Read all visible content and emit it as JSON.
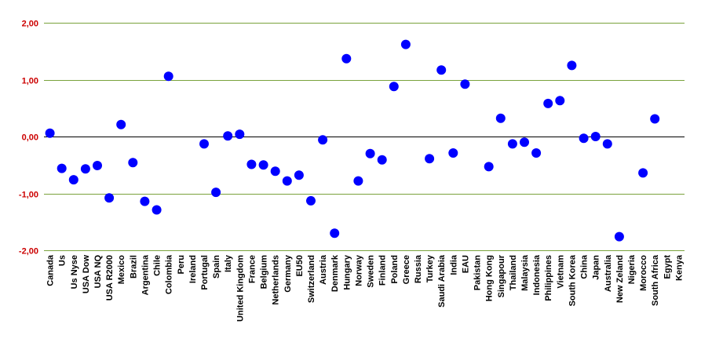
{
  "chart_data": {
    "type": "scatter",
    "title": "",
    "xlabel": "",
    "ylabel": "",
    "ylim": [
      -2.0,
      2.0
    ],
    "yticks": [
      2.0,
      1.0,
      0.0,
      -1.0,
      -2.0
    ],
    "ytick_labels": [
      "2,00",
      "1,00",
      "0,00",
      "-1,00",
      "-2,00"
    ],
    "grid": true,
    "legend": "none",
    "colors": {
      "marker": "#0000ff",
      "gridline": "#7aa23c",
      "zero_line": "#000000",
      "ytick_label": "#cc0000",
      "xtick_label": "#000000"
    },
    "categories": [
      "Canada",
      "Us",
      "Us Nyse",
      "USA Dow",
      "USA NQ",
      "USA R2000",
      "Mexico",
      "Brazil",
      "Argentina",
      "Chile",
      "Colombia",
      "Peru",
      "Ireland",
      "Portugal",
      "Spain",
      "Italy",
      "United Kingdom",
      "France",
      "Belgium",
      "Netherlands",
      "Germany",
      "EU50",
      "Switzerland",
      "Austria",
      "Denmark",
      "Hungary",
      "Norway",
      "Sweden",
      "Finland",
      "Poland",
      "Greece",
      "Russia",
      "Turkey",
      "Saudi Arabia",
      "India",
      "EAU",
      "Pakistan",
      "Hong Kong",
      "Singapour",
      "Thailand",
      "Malaysia",
      "Indonesia",
      "Philippines",
      "Vietnam",
      "South Korea",
      "China",
      "Japan",
      "Australia",
      "New Zeland",
      "Nigeria",
      "Morocco",
      "South Africa",
      "Egypt",
      "Kenya"
    ],
    "values": [
      0.06,
      -0.56,
      -0.76,
      -0.57,
      -0.51,
      -1.08,
      0.21,
      -0.46,
      -1.14,
      -1.29,
      1.06,
      null,
      null,
      -0.13,
      -0.98,
      0.01,
      0.04,
      -0.49,
      -0.5,
      -0.61,
      -0.78,
      -0.68,
      -1.13,
      -0.06,
      -1.7,
      1.37,
      -0.78,
      -0.3,
      -0.41,
      0.88,
      1.62,
      null,
      -0.39,
      1.17,
      -0.29,
      0.92,
      null,
      -0.53,
      0.32,
      -0.13,
      -0.1,
      -0.29,
      0.58,
      0.63,
      1.25,
      -0.03,
      0.0,
      -0.13,
      -1.76,
      null,
      -0.64,
      0.31,
      null,
      null
    ]
  }
}
